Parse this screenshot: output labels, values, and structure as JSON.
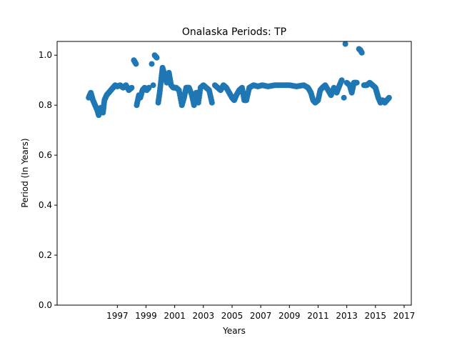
{
  "chart_data": {
    "type": "scatter",
    "title": "Onalaska Periods: TP",
    "xlabel": "Years",
    "ylabel": "Period (In Years)",
    "xlim": [
      1992.8,
      2017.5
    ],
    "ylim": [
      0.0,
      1.055
    ],
    "xticks": [
      1997,
      1999,
      2001,
      2003,
      2005,
      2007,
      2009,
      2011,
      2013,
      2015,
      2017
    ],
    "yticks": [
      0.0,
      0.2,
      0.4,
      0.6,
      0.8,
      1.0
    ],
    "ytick_labels": [
      "0.0",
      "0.2",
      "0.4",
      "0.6",
      "0.8",
      "1.0"
    ],
    "grid": false,
    "legend": "none",
    "marker_color": "#1f77b4",
    "series": [
      {
        "points": [
          [
            1995.0,
            0.83
          ],
          [
            1995.15,
            0.85
          ],
          [
            1995.3,
            0.82
          ],
          [
            1995.45,
            0.8
          ],
          [
            1995.6,
            0.78
          ],
          [
            1995.7,
            0.76
          ],
          [
            1995.85,
            0.79
          ],
          [
            1996.0,
            0.77
          ],
          [
            1996.1,
            0.82
          ],
          [
            1996.25,
            0.84
          ],
          [
            1996.4,
            0.85
          ],
          [
            1996.55,
            0.86
          ],
          [
            1996.7,
            0.87
          ],
          [
            1996.85,
            0.88
          ],
          [
            1997.0,
            0.875
          ],
          [
            1997.2,
            0.88
          ],
          [
            1997.4,
            0.87
          ],
          [
            1997.6,
            0.88
          ],
          [
            1997.8,
            0.86
          ],
          [
            1998.0,
            0.87
          ],
          [
            1998.15,
            0.98
          ],
          [
            1998.3,
            0.965
          ],
          [
            1998.35,
            0.8
          ],
          [
            1998.5,
            0.84
          ],
          [
            1998.6,
            0.83
          ],
          [
            1998.75,
            0.86
          ],
          [
            1998.9,
            0.87
          ],
          [
            1999.05,
            0.86
          ],
          [
            1999.2,
            0.87
          ],
          [
            1999.4,
            0.965
          ],
          [
            1999.5,
            0.88
          ],
          [
            1999.6,
            1.0
          ],
          [
            1999.75,
            0.99
          ],
          [
            1999.85,
            0.81
          ],
          [
            1999.95,
            0.85
          ],
          [
            2000.05,
            0.9
          ],
          [
            2000.15,
            0.95
          ],
          [
            2000.3,
            0.92
          ],
          [
            2000.45,
            0.89
          ],
          [
            2000.6,
            0.93
          ],
          [
            2000.75,
            0.88
          ],
          [
            2000.9,
            0.87
          ],
          [
            2001.1,
            0.87
          ],
          [
            2001.3,
            0.86
          ],
          [
            2001.5,
            0.8
          ],
          [
            2001.65,
            0.83
          ],
          [
            2001.8,
            0.87
          ],
          [
            2002.0,
            0.87
          ],
          [
            2002.2,
            0.84
          ],
          [
            2002.35,
            0.8
          ],
          [
            2002.5,
            0.85
          ],
          [
            2002.65,
            0.81
          ],
          [
            2002.8,
            0.87
          ],
          [
            2003.0,
            0.88
          ],
          [
            2003.2,
            0.87
          ],
          [
            2003.4,
            0.86
          ],
          [
            2003.6,
            0.81
          ],
          [
            2003.8,
            0.88
          ],
          [
            2004.0,
            0.87
          ],
          [
            2004.2,
            0.86
          ],
          [
            2004.4,
            0.88
          ],
          [
            2004.6,
            0.87
          ],
          [
            2004.8,
            0.85
          ],
          [
            2005.0,
            0.83
          ],
          [
            2005.15,
            0.82
          ],
          [
            2005.3,
            0.84
          ],
          [
            2005.5,
            0.86
          ],
          [
            2005.7,
            0.87
          ],
          [
            2005.85,
            0.82
          ],
          [
            2006.0,
            0.82
          ],
          [
            2006.2,
            0.87
          ],
          [
            2006.5,
            0.88
          ],
          [
            2006.8,
            0.875
          ],
          [
            2007.1,
            0.88
          ],
          [
            2007.5,
            0.875
          ],
          [
            2008.0,
            0.88
          ],
          [
            2008.5,
            0.88
          ],
          [
            2009.0,
            0.88
          ],
          [
            2009.5,
            0.875
          ],
          [
            2010.0,
            0.88
          ],
          [
            2010.3,
            0.87
          ],
          [
            2010.5,
            0.85
          ],
          [
            2010.65,
            0.82
          ],
          [
            2010.8,
            0.81
          ],
          [
            2011.0,
            0.82
          ],
          [
            2011.15,
            0.86
          ],
          [
            2011.3,
            0.87
          ],
          [
            2011.5,
            0.88
          ],
          [
            2011.7,
            0.86
          ],
          [
            2011.9,
            0.84
          ],
          [
            2012.1,
            0.87
          ],
          [
            2012.3,
            0.85
          ],
          [
            2012.5,
            0.88
          ],
          [
            2012.65,
            0.9
          ],
          [
            2012.8,
            0.83
          ],
          [
            2012.9,
            1.045
          ],
          [
            2013.0,
            0.89
          ],
          [
            2013.2,
            0.88
          ],
          [
            2013.35,
            0.85
          ],
          [
            2013.5,
            0.89
          ],
          [
            2013.7,
            0.89
          ],
          [
            2013.85,
            1.025
          ],
          [
            2013.95,
            1.02
          ],
          [
            2014.05,
            1.01
          ],
          [
            2014.2,
            0.88
          ],
          [
            2014.4,
            0.88
          ],
          [
            2014.6,
            0.89
          ],
          [
            2014.8,
            0.88
          ],
          [
            2015.0,
            0.87
          ],
          [
            2015.1,
            0.85
          ],
          [
            2015.2,
            0.83
          ],
          [
            2015.35,
            0.81
          ],
          [
            2015.5,
            0.82
          ],
          [
            2015.65,
            0.81
          ],
          [
            2015.8,
            0.82
          ],
          [
            2015.95,
            0.83
          ]
        ]
      }
    ]
  }
}
